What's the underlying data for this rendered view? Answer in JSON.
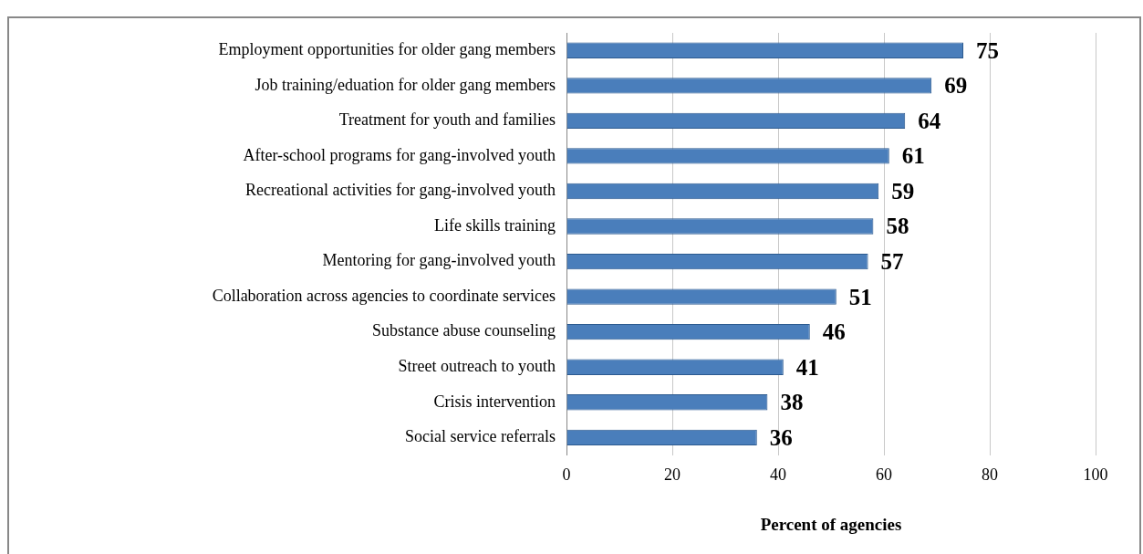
{
  "chart_data": {
    "type": "bar",
    "orientation": "horizontal",
    "categories": [
      "Employment opportunities for older gang members",
      "Job training/eduation for older gang members",
      "Treatment for youth and families",
      "After-school programs for gang-involved youth",
      "Recreational activities for gang-involved youth",
      "Life skills training",
      "Mentoring for gang-involved youth",
      "Collaboration across agencies to coordinate services",
      "Substance abuse counseling",
      "Street outreach to youth",
      "Crisis intervention",
      "Social service referrals"
    ],
    "values": [
      75,
      69,
      64,
      61,
      59,
      58,
      57,
      51,
      46,
      41,
      38,
      36
    ],
    "color": "#4a7ebb",
    "xlim": [
      0,
      100
    ],
    "xticks": [
      0,
      20,
      40,
      60,
      80,
      100
    ],
    "xlabel": "Percent of agencies",
    "grid": "x",
    "data_labels": true,
    "legend": false
  }
}
